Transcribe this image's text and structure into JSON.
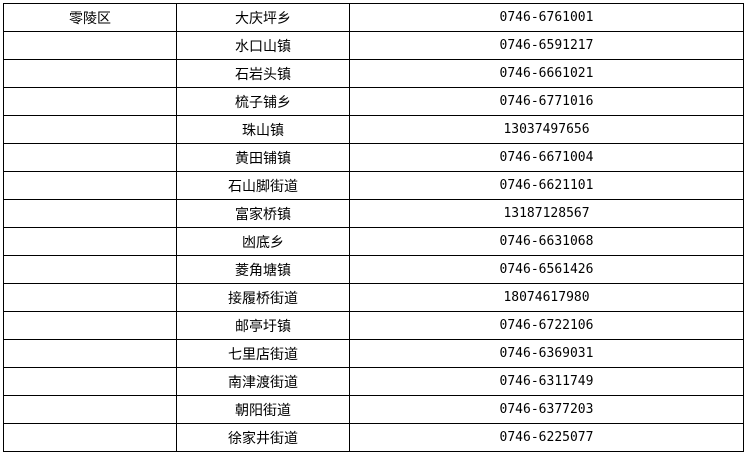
{
  "table": {
    "rows": [
      {
        "district": "零陵区",
        "town": "大庆坪乡",
        "phone": "0746-6761001"
      },
      {
        "district": "",
        "town": "水口山镇",
        "phone": "0746-6591217"
      },
      {
        "district": "",
        "town": "石岩头镇",
        "phone": "0746-6661021"
      },
      {
        "district": "",
        "town": "梳子铺乡",
        "phone": "0746-6771016"
      },
      {
        "district": "",
        "town": "珠山镇",
        "phone": "13037497656"
      },
      {
        "district": "",
        "town": "黄田铺镇",
        "phone": "0746-6671004"
      },
      {
        "district": "",
        "town": "石山脚街道",
        "phone": "0746-6621101"
      },
      {
        "district": "",
        "town": "富家桥镇",
        "phone": "13187128567"
      },
      {
        "district": "",
        "town": "凼底乡",
        "phone": "0746-6631068"
      },
      {
        "district": "",
        "town": "菱角塘镇",
        "phone": "0746-6561426"
      },
      {
        "district": "",
        "town": "接履桥街道",
        "phone": "18074617980"
      },
      {
        "district": "",
        "town": "邮亭圩镇",
        "phone": "0746-6722106"
      },
      {
        "district": "",
        "town": "七里店街道",
        "phone": "0746-6369031"
      },
      {
        "district": "",
        "town": "南津渡街道",
        "phone": "0746-6311749"
      },
      {
        "district": "",
        "town": "朝阳街道",
        "phone": "0746-6377203"
      },
      {
        "district": "",
        "town": "徐家井街道",
        "phone": "0746-6225077"
      }
    ]
  }
}
